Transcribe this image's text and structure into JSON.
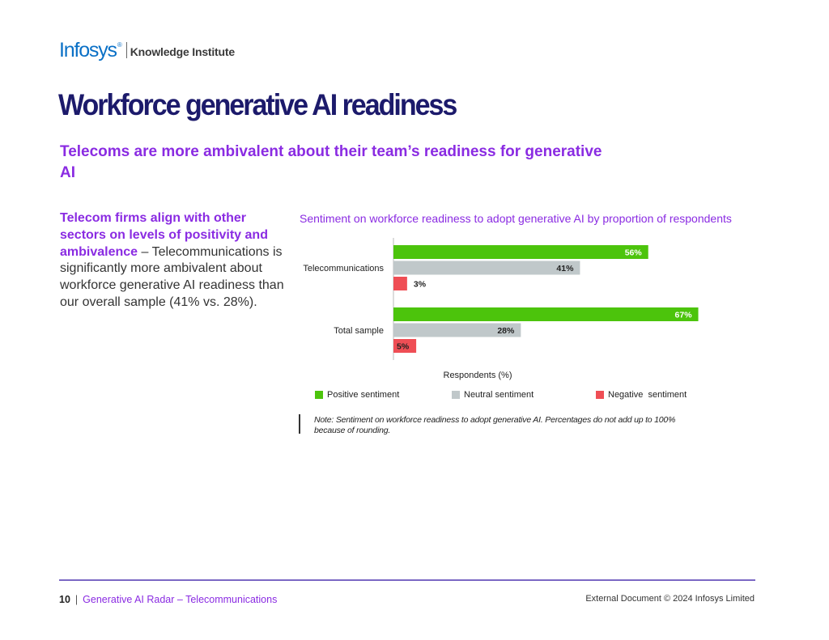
{
  "logo": {
    "brand": "Infosys",
    "mark": "®",
    "sub": "Knowledge Institute"
  },
  "title": "Workforce generative AI readiness",
  "subtitle": "Telecoms are more ambivalent about their team’s readiness for generative AI",
  "body": {
    "highlight": "Telecom firms align with other sectors on levels of positivity and ambivalence",
    "text": " – Telecommunications is significantly more ambivalent about workforce generative AI readiness than our overall sample (41% vs. 28%)."
  },
  "note": "Note: Sentiment on workforce readiness to adopt generative AI. Percentages do not add up to 100% because of rounding.",
  "footer": {
    "page": "10",
    "separator": "|",
    "report": "Generative AI Radar – Telecommunications",
    "copyright": "External Document © 2024 Infosys Limited"
  },
  "colors": {
    "brand_blue": "#0a70c6",
    "title_navy": "#1c1a6b",
    "accent_purple": "#8a2be2",
    "rule_purple": "#7b68c4",
    "positive": "#4cc40c",
    "neutral": "#c0c8ca",
    "negative": "#ef4e55"
  },
  "chart_data": {
    "type": "bar",
    "orientation": "horizontal",
    "title": "Sentiment on workforce readiness to adopt generative AI by proportion of respondents",
    "xlabel": "Respondents (%)",
    "ylabel": "",
    "xlim": [
      0,
      100
    ],
    "grid": false,
    "legend_position": "bottom",
    "categories": [
      "Telecommunications",
      "Total sample"
    ],
    "series": [
      {
        "name": "Positive sentiment",
        "values": [
          56,
          67
        ],
        "labels": [
          "56%",
          "67%"
        ],
        "color": "#4cc40c",
        "label_color": "#ffffff"
      },
      {
        "name": "Neutral sentiment",
        "values": [
          41,
          28
        ],
        "labels": [
          "41%",
          "28%"
        ],
        "color": "#c0c8ca",
        "label_color": "#222222"
      },
      {
        "name": "Negative  sentiment",
        "values": [
          3,
          5
        ],
        "labels": [
          "3%",
          "5%"
        ],
        "color": "#ef4e55",
        "label_color": "#222222"
      }
    ]
  }
}
